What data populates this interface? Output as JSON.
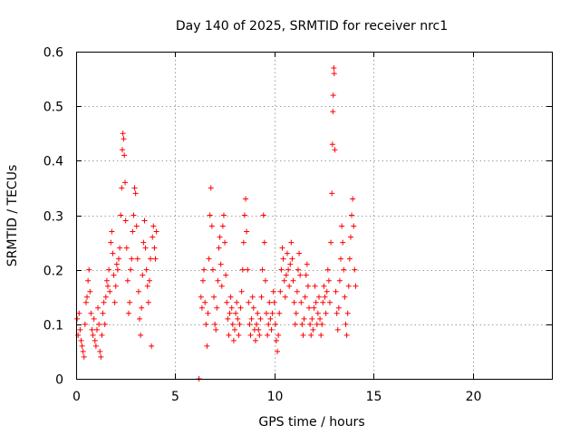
{
  "chart_data": {
    "type": "scatter",
    "title": "Day 140 of 2025, SRMTID for receiver nrc1",
    "xlabel": "GPS time / hours",
    "ylabel": "SRMTID / TECUs",
    "xlim": [
      0,
      24
    ],
    "ylim": [
      0,
      0.6
    ],
    "xticks": [
      0,
      5,
      10,
      15,
      20
    ],
    "yticks": [
      0,
      0.1,
      0.2,
      0.3,
      0.4,
      0.5,
      0.6
    ],
    "xtick_labels": [
      "0",
      "5",
      "10",
      "15",
      "20"
    ],
    "ytick_labels": [
      "0",
      "0.1",
      "0.2",
      "0.3",
      "0.4",
      "0.5",
      "0.6"
    ],
    "grid": true,
    "series": [
      {
        "name": "SRMTID",
        "color": "#ff0000",
        "marker": "plus",
        "points": [
          [
            0.05,
            0.11
          ],
          [
            0.1,
            0.08
          ],
          [
            0.15,
            0.12
          ],
          [
            0.2,
            0.09
          ],
          [
            0.25,
            0.07
          ],
          [
            0.3,
            0.06
          ],
          [
            0.35,
            0.05
          ],
          [
            0.4,
            0.04
          ],
          [
            0.45,
            0.1
          ],
          [
            0.5,
            0.14
          ],
          [
            0.55,
            0.15
          ],
          [
            0.6,
            0.18
          ],
          [
            0.65,
            0.2
          ],
          [
            0.7,
            0.16
          ],
          [
            0.75,
            0.12
          ],
          [
            0.8,
            0.09
          ],
          [
            0.85,
            0.08
          ],
          [
            0.9,
            0.11
          ],
          [
            0.95,
            0.07
          ],
          [
            1.0,
            0.06
          ],
          [
            1.05,
            0.09
          ],
          [
            1.1,
            0.13
          ],
          [
            1.15,
            0.1
          ],
          [
            1.2,
            0.05
          ],
          [
            1.25,
            0.04
          ],
          [
            1.3,
            0.08
          ],
          [
            1.35,
            0.12
          ],
          [
            1.4,
            0.14
          ],
          [
            1.45,
            0.1
          ],
          [
            1.5,
            0.15
          ],
          [
            1.55,
            0.18
          ],
          [
            1.6,
            0.17
          ],
          [
            1.65,
            0.2
          ],
          [
            1.7,
            0.16
          ],
          [
            1.75,
            0.25
          ],
          [
            1.8,
            0.27
          ],
          [
            1.85,
            0.23
          ],
          [
            1.9,
            0.19
          ],
          [
            1.95,
            0.14
          ],
          [
            2.0,
            0.17
          ],
          [
            2.05,
            0.21
          ],
          [
            2.1,
            0.2
          ],
          [
            2.15,
            0.22
          ],
          [
            2.2,
            0.24
          ],
          [
            2.25,
            0.3
          ],
          [
            2.3,
            0.35
          ],
          [
            2.33,
            0.42
          ],
          [
            2.36,
            0.45
          ],
          [
            2.4,
            0.44
          ],
          [
            2.43,
            0.41
          ],
          [
            2.47,
            0.36
          ],
          [
            2.5,
            0.29
          ],
          [
            2.55,
            0.24
          ],
          [
            2.6,
            0.18
          ],
          [
            2.65,
            0.12
          ],
          [
            2.7,
            0.14
          ],
          [
            2.75,
            0.2
          ],
          [
            2.8,
            0.22
          ],
          [
            2.85,
            0.27
          ],
          [
            2.9,
            0.3
          ],
          [
            2.95,
            0.35
          ],
          [
            3.0,
            0.34
          ],
          [
            3.05,
            0.28
          ],
          [
            3.1,
            0.22
          ],
          [
            3.15,
            0.16
          ],
          [
            3.2,
            0.11
          ],
          [
            3.25,
            0.08
          ],
          [
            3.3,
            0.13
          ],
          [
            3.35,
            0.19
          ],
          [
            3.4,
            0.25
          ],
          [
            3.45,
            0.29
          ],
          [
            3.5,
            0.24
          ],
          [
            3.55,
            0.2
          ],
          [
            3.6,
            0.17
          ],
          [
            3.65,
            0.14
          ],
          [
            3.7,
            0.18
          ],
          [
            3.75,
            0.22
          ],
          [
            3.8,
            0.06
          ],
          [
            3.85,
            0.26
          ],
          [
            3.9,
            0.28
          ],
          [
            3.95,
            0.24
          ],
          [
            4.0,
            0.22
          ],
          [
            4.05,
            0.27
          ],
          [
            6.2,
            0.0
          ],
          [
            6.3,
            0.15
          ],
          [
            6.35,
            0.13
          ],
          [
            6.4,
            0.18
          ],
          [
            6.45,
            0.2
          ],
          [
            6.5,
            0.14
          ],
          [
            6.55,
            0.1
          ],
          [
            6.6,
            0.06
          ],
          [
            6.65,
            0.12
          ],
          [
            6.7,
            0.22
          ],
          [
            6.75,
            0.3
          ],
          [
            6.8,
            0.35
          ],
          [
            6.85,
            0.28
          ],
          [
            6.9,
            0.2
          ],
          [
            6.95,
            0.15
          ],
          [
            7.0,
            0.1
          ],
          [
            7.05,
            0.09
          ],
          [
            7.1,
            0.13
          ],
          [
            7.15,
            0.18
          ],
          [
            7.2,
            0.24
          ],
          [
            7.25,
            0.26
          ],
          [
            7.3,
            0.21
          ],
          [
            7.35,
            0.17
          ],
          [
            7.4,
            0.28
          ],
          [
            7.45,
            0.3
          ],
          [
            7.5,
            0.25
          ],
          [
            7.55,
            0.19
          ],
          [
            7.6,
            0.14
          ],
          [
            7.65,
            0.11
          ],
          [
            7.7,
            0.08
          ],
          [
            7.75,
            0.12
          ],
          [
            7.8,
            0.15
          ],
          [
            7.85,
            0.13
          ],
          [
            7.9,
            0.1
          ],
          [
            7.95,
            0.07
          ],
          [
            8.0,
            0.09
          ],
          [
            8.05,
            0.12
          ],
          [
            8.1,
            0.14
          ],
          [
            8.15,
            0.11
          ],
          [
            8.2,
            0.08
          ],
          [
            8.25,
            0.1
          ],
          [
            8.3,
            0.13
          ],
          [
            8.35,
            0.16
          ],
          [
            8.4,
            0.2
          ],
          [
            8.45,
            0.25
          ],
          [
            8.5,
            0.3
          ],
          [
            8.55,
            0.33
          ],
          [
            8.6,
            0.27
          ],
          [
            8.65,
            0.2
          ],
          [
            8.7,
            0.14
          ],
          [
            8.75,
            0.1
          ],
          [
            8.8,
            0.08
          ],
          [
            8.85,
            0.11
          ],
          [
            8.9,
            0.15
          ],
          [
            8.95,
            0.13
          ],
          [
            9.0,
            0.09
          ],
          [
            9.05,
            0.07
          ],
          [
            9.1,
            0.1
          ],
          [
            9.15,
            0.12
          ],
          [
            9.2,
            0.09
          ],
          [
            9.25,
            0.08
          ],
          [
            9.3,
            0.11
          ],
          [
            9.35,
            0.15
          ],
          [
            9.4,
            0.2
          ],
          [
            9.45,
            0.3
          ],
          [
            9.5,
            0.25
          ],
          [
            9.55,
            0.18
          ],
          [
            9.6,
            0.12
          ],
          [
            9.65,
            0.08
          ],
          [
            9.7,
            0.1
          ],
          [
            9.75,
            0.14
          ],
          [
            9.8,
            0.11
          ],
          [
            9.85,
            0.09
          ],
          [
            9.9,
            0.12
          ],
          [
            9.95,
            0.16
          ],
          [
            10.0,
            0.14
          ],
          [
            10.05,
            0.1
          ],
          [
            10.1,
            0.07
          ],
          [
            10.15,
            0.05
          ],
          [
            10.2,
            0.08
          ],
          [
            10.25,
            0.12
          ],
          [
            10.3,
            0.16
          ],
          [
            10.35,
            0.2
          ],
          [
            10.4,
            0.24
          ],
          [
            10.45,
            0.22
          ],
          [
            10.5,
            0.18
          ],
          [
            10.55,
            0.15
          ],
          [
            10.6,
            0.19
          ],
          [
            10.65,
            0.23
          ],
          [
            10.7,
            0.2
          ],
          [
            10.75,
            0.17
          ],
          [
            10.8,
            0.21
          ],
          [
            10.85,
            0.25
          ],
          [
            10.9,
            0.22
          ],
          [
            10.95,
            0.18
          ],
          [
            11.0,
            0.14
          ],
          [
            11.05,
            0.1
          ],
          [
            11.1,
            0.12
          ],
          [
            11.15,
            0.16
          ],
          [
            11.2,
            0.2
          ],
          [
            11.25,
            0.23
          ],
          [
            11.3,
            0.19
          ],
          [
            11.35,
            0.14
          ],
          [
            11.4,
            0.1
          ],
          [
            11.45,
            0.08
          ],
          [
            11.5,
            0.11
          ],
          [
            11.55,
            0.15
          ],
          [
            11.6,
            0.19
          ],
          [
            11.65,
            0.21
          ],
          [
            11.7,
            0.17
          ],
          [
            11.75,
            0.13
          ],
          [
            11.8,
            0.1
          ],
          [
            11.85,
            0.08
          ],
          [
            11.9,
            0.11
          ],
          [
            11.95,
            0.09
          ],
          [
            12.0,
            0.13
          ],
          [
            12.05,
            0.17
          ],
          [
            12.1,
            0.14
          ],
          [
            12.15,
            0.1
          ],
          [
            12.2,
            0.12
          ],
          [
            12.25,
            0.15
          ],
          [
            12.3,
            0.11
          ],
          [
            12.35,
            0.08
          ],
          [
            12.4,
            0.1
          ],
          [
            12.45,
            0.14
          ],
          [
            12.5,
            0.17
          ],
          [
            12.55,
            0.15
          ],
          [
            12.6,
            0.12
          ],
          [
            12.65,
            0.16
          ],
          [
            12.7,
            0.2
          ],
          [
            12.75,
            0.18
          ],
          [
            12.8,
            0.14
          ],
          [
            12.85,
            0.25
          ],
          [
            12.9,
            0.34
          ],
          [
            12.93,
            0.43
          ],
          [
            12.95,
            0.49
          ],
          [
            12.97,
            0.52
          ],
          [
            13.0,
            0.57
          ],
          [
            13.02,
            0.56
          ],
          [
            13.05,
            0.42
          ],
          [
            13.1,
            0.16
          ],
          [
            13.15,
            0.12
          ],
          [
            13.2,
            0.09
          ],
          [
            13.25,
            0.13
          ],
          [
            13.3,
            0.18
          ],
          [
            13.35,
            0.22
          ],
          [
            13.4,
            0.28
          ],
          [
            13.45,
            0.25
          ],
          [
            13.5,
            0.2
          ],
          [
            13.55,
            0.15
          ],
          [
            13.6,
            0.1
          ],
          [
            13.65,
            0.08
          ],
          [
            13.7,
            0.12
          ],
          [
            13.75,
            0.17
          ],
          [
            13.8,
            0.22
          ],
          [
            13.85,
            0.26
          ],
          [
            13.9,
            0.3
          ],
          [
            13.95,
            0.33
          ],
          [
            14.0,
            0.28
          ],
          [
            14.05,
            0.2
          ],
          [
            14.1,
            0.17
          ]
        ]
      }
    ]
  }
}
